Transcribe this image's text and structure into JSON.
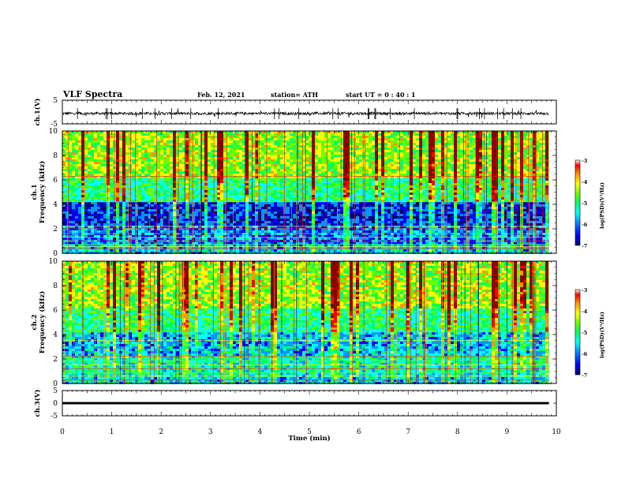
{
  "header": {
    "title": "VLF Spectra",
    "date": "Feb. 12, 2021",
    "station": "station= ATH",
    "start": "start  UT =   0 : 40 : 1"
  },
  "colors": {
    "background": "#ffffff",
    "axis": "#000000",
    "colormap": [
      "#00006e",
      "#0000ff",
      "#0096ff",
      "#00ffff",
      "#00ff64",
      "#64ff00",
      "#ffff00",
      "#ff9600",
      "#ff0000",
      "#8c0000"
    ]
  },
  "chart_data": [
    {
      "type": "line",
      "id": "ch1-waveform",
      "ylabel": "ch.1(V)",
      "ylim": [
        -5,
        5
      ],
      "yticks": [
        "5",
        "-5"
      ],
      "x_range_min": [
        0,
        9.85
      ],
      "baseline_v": -0.6,
      "amplitude_v": 1.2
    },
    {
      "type": "heatmap",
      "id": "ch1-spectrogram",
      "ylabel": "ch.1\nFrequency  (kHz)",
      "ylim": [
        0,
        10
      ],
      "yticks": [
        "0",
        "2",
        "4",
        "6",
        "8",
        "10"
      ],
      "x_range_min": [
        0,
        9.85
      ],
      "colorbar": {
        "label": "log(PSD)(V²/Hz)",
        "range": [
          -7,
          -3
        ],
        "ticks": [
          "-3",
          "-4",
          "-5",
          "-6",
          "-7"
        ]
      }
    },
    {
      "type": "heatmap",
      "id": "ch2-spectrogram",
      "ylabel": "ch.2\nFrequency  (kHz)",
      "ylim": [
        0,
        10
      ],
      "yticks": [
        "0",
        "2",
        "4",
        "6",
        "8",
        "10"
      ],
      "x_range_min": [
        0,
        9.85
      ],
      "colorbar": {
        "label": "log(PSD)(V²/Hz)",
        "range": [
          -7,
          -3
        ],
        "ticks": [
          "-3",
          "-4",
          "-5",
          "-6",
          "-7"
        ]
      }
    },
    {
      "type": "line",
      "id": "ch3-waveform",
      "ylabel": "ch.3(V)",
      "ylim": [
        -5,
        5
      ],
      "yticks": [
        "5",
        "0",
        "-5"
      ],
      "x_range_min": [
        0,
        9.85
      ],
      "baseline_v": 0
    }
  ],
  "x_axis": {
    "label": "Time  (min)",
    "range": [
      0,
      10
    ],
    "ticks": [
      "0",
      "1",
      "2",
      "3",
      "4",
      "5",
      "6",
      "7",
      "8",
      "9",
      "10"
    ]
  }
}
